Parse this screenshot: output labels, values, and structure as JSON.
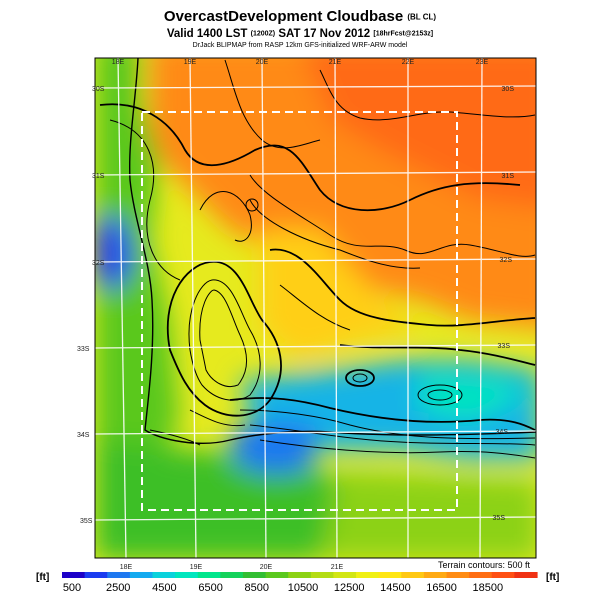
{
  "header": {
    "title_main": "OvercastDevelopment Cloudbase",
    "title_suffix": "(BL CL)",
    "valid_line": "Valid 1400 LST",
    "valid_code": "(1200Z)",
    "valid_date": "SAT 17 Nov 2012",
    "forecast_tag": "[18hrFcst@2153z]",
    "credit_line": "DrJack BLIPMAP from RASP 12km GFS-initialized WRF-ARW model"
  },
  "map": {
    "lon_labels_top": [
      "18E",
      "19E",
      "20E",
      "21E",
      "22E",
      "23E"
    ],
    "lon_labels_bottom": [
      "18E",
      "19E",
      "20E",
      "21E"
    ],
    "lat_labels_left": [
      "30S",
      "31S",
      "32S",
      "33S",
      "34S",
      "35S"
    ],
    "lat_labels_right": [
      "30S",
      "31S",
      "32S",
      "33S",
      "34S",
      "35S"
    ],
    "terrain_note": "Terrain contours: 500 ft"
  },
  "colorbar": {
    "unit_left": "[ft]",
    "unit_right": "[ft]",
    "tick_labels": [
      "500",
      "2500",
      "4500",
      "6500",
      "8500",
      "10500",
      "12500",
      "14500",
      "16500",
      "18500"
    ],
    "colors": [
      "#1c00c8",
      "#1a3cf0",
      "#1e78f0",
      "#14aaf0",
      "#0ad2dc",
      "#00e6be",
      "#00e68c",
      "#14d25a",
      "#32be32",
      "#5ac81e",
      "#8cd214",
      "#b4dc14",
      "#d2e614",
      "#f0f014",
      "#ffe614",
      "#ffc814",
      "#ffaa14",
      "#ff8c14",
      "#ff6e14",
      "#ff5014",
      "#f03214"
    ]
  }
}
